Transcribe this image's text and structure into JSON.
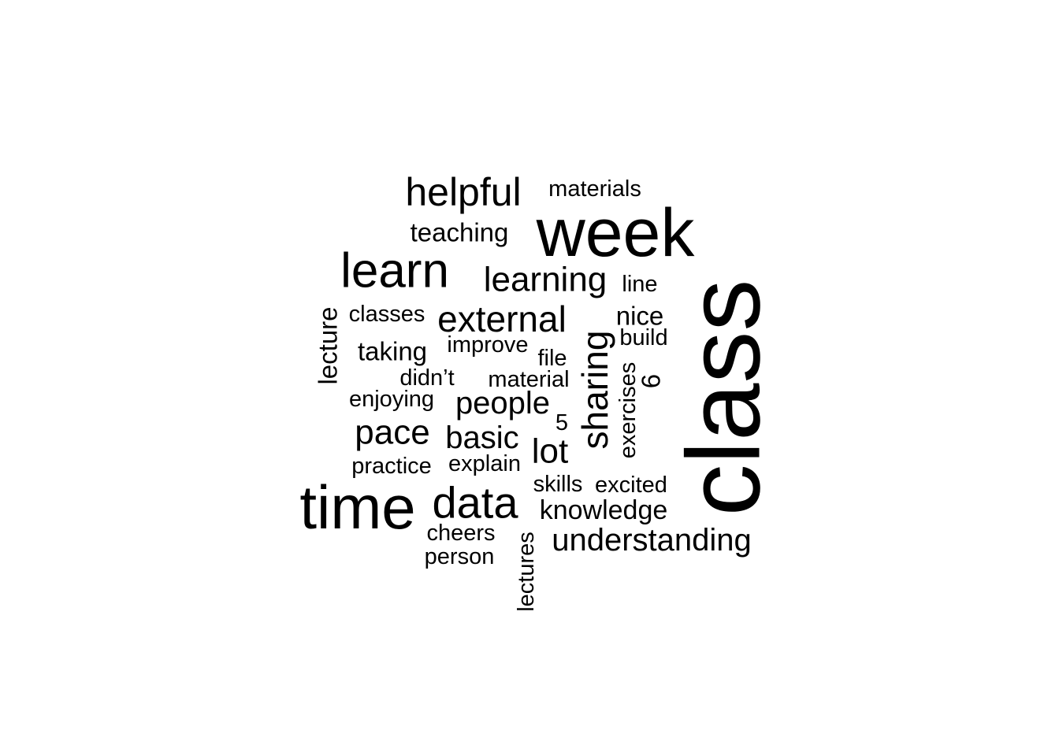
{
  "word_cloud": {
    "text_color": "#000000",
    "background": "#ffffff",
    "words": [
      {
        "id": "class",
        "text": "class",
        "rotated": true
      },
      {
        "id": "week",
        "text": "week",
        "rotated": false
      },
      {
        "id": "time",
        "text": "time",
        "rotated": false
      },
      {
        "id": "learn",
        "text": "learn",
        "rotated": false
      },
      {
        "id": "data",
        "text": "data",
        "rotated": false
      },
      {
        "id": "helpful",
        "text": "helpful",
        "rotated": false
      },
      {
        "id": "learning",
        "text": "learning",
        "rotated": false
      },
      {
        "id": "external",
        "text": "external",
        "rotated": false
      },
      {
        "id": "sharing",
        "text": "sharing",
        "rotated": true
      },
      {
        "id": "understanding",
        "text": "understanding",
        "rotated": false
      },
      {
        "id": "pace",
        "text": "pace",
        "rotated": false
      },
      {
        "id": "basic",
        "text": "basic",
        "rotated": false
      },
      {
        "id": "people",
        "text": "people",
        "rotated": false
      },
      {
        "id": "lot",
        "text": "lot",
        "rotated": false
      },
      {
        "id": "knowledge",
        "text": "knowledge",
        "rotated": false
      },
      {
        "id": "teaching",
        "text": "teaching",
        "rotated": false
      },
      {
        "id": "materials",
        "text": "materials",
        "rotated": false
      },
      {
        "id": "nice",
        "text": "nice",
        "rotated": false
      },
      {
        "id": "taking",
        "text": "taking",
        "rotated": false
      },
      {
        "id": "lecture",
        "text": "lecture",
        "rotated": true
      },
      {
        "id": "classes",
        "text": "classes",
        "rotated": false
      },
      {
        "id": "improve",
        "text": "improve",
        "rotated": false
      },
      {
        "id": "file",
        "text": "file",
        "rotated": false
      },
      {
        "id": "material",
        "text": "material",
        "rotated": false
      },
      {
        "id": "didnt",
        "text": "didn’t",
        "rotated": false
      },
      {
        "id": "enjoying",
        "text": "enjoying",
        "rotated": false
      },
      {
        "id": "line",
        "text": "line",
        "rotated": false
      },
      {
        "id": "build",
        "text": "build",
        "rotated": false
      },
      {
        "id": "six",
        "text": "6",
        "rotated": true
      },
      {
        "id": "exercises",
        "text": "exercises",
        "rotated": true
      },
      {
        "id": "five",
        "text": "5",
        "rotated": false
      },
      {
        "id": "practice",
        "text": "practice",
        "rotated": false
      },
      {
        "id": "explain",
        "text": "explain",
        "rotated": false
      },
      {
        "id": "skills",
        "text": "skills",
        "rotated": false
      },
      {
        "id": "excited",
        "text": "excited",
        "rotated": false
      },
      {
        "id": "cheers",
        "text": "cheers",
        "rotated": false
      },
      {
        "id": "person",
        "text": "person",
        "rotated": false
      },
      {
        "id": "lectures",
        "text": "lectures",
        "rotated": true
      }
    ]
  }
}
